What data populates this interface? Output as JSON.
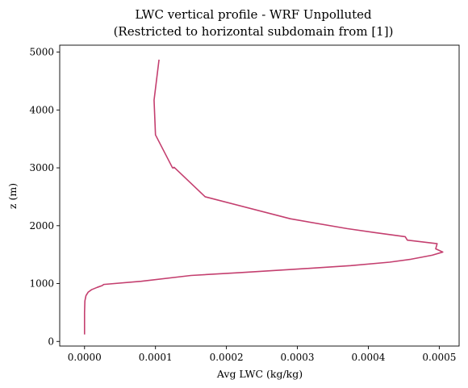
{
  "chart_data": {
    "type": "line",
    "title": "LWC vertical profile - WRF Unpolluted",
    "subtitle": "(Restricted to horizontal subdomain from [1])",
    "xlabel": "Avg LWC (kg/kg)",
    "ylabel": "z (m)",
    "xlim": [
      -3.5e-05,
      0.000528
    ],
    "ylim": [
      -80,
      5120
    ],
    "xticks": [
      {
        "value": 0,
        "label": "0.0000"
      },
      {
        "value": 0.0001,
        "label": "0.0001"
      },
      {
        "value": 0.0002,
        "label": "0.0002"
      },
      {
        "value": 0.0003,
        "label": "0.0003"
      },
      {
        "value": 0.0004,
        "label": "0.0004"
      },
      {
        "value": 0.0005,
        "label": "0.0005"
      }
    ],
    "yticks": [
      {
        "value": 0,
        "label": "0"
      },
      {
        "value": 1000,
        "label": "1000"
      },
      {
        "value": 2000,
        "label": "2000"
      },
      {
        "value": 3000,
        "label": "3000"
      },
      {
        "value": 4000,
        "label": "4000"
      },
      {
        "value": 5000,
        "label": "5000"
      }
    ],
    "grid": false,
    "line_color": "#c43f6f",
    "series": [
      {
        "x": [
          0,
          0,
          5e-07,
          2e-06,
          5e-06,
          1e-05,
          1.8e-05,
          2.5e-05,
          2.7e-05,
          8e-05,
          0.00015,
          0.00022,
          0.0003,
          0.000375,
          0.00043,
          0.00046,
          0.00049,
          0.000505,
          0.000495,
          0.000497,
          0.000455,
          0.000452,
          0.00041,
          0.00037,
          0.00029,
          0.00017,
          0.000128,
          0.000126,
          0.000127,
          0.000124,
          0.0001,
          9.8e-05,
          0.000105
        ],
        "y": [
          120,
          500,
          700,
          790,
          850,
          895,
          935,
          965,
          985,
          1040,
          1140,
          1190,
          1250,
          1310,
          1370,
          1420,
          1490,
          1545,
          1600,
          1690,
          1750,
          1810,
          1880,
          1950,
          2120,
          2500,
          2990,
          3010,
          3000,
          3000,
          3570,
          4170,
          4870
        ]
      }
    ]
  }
}
